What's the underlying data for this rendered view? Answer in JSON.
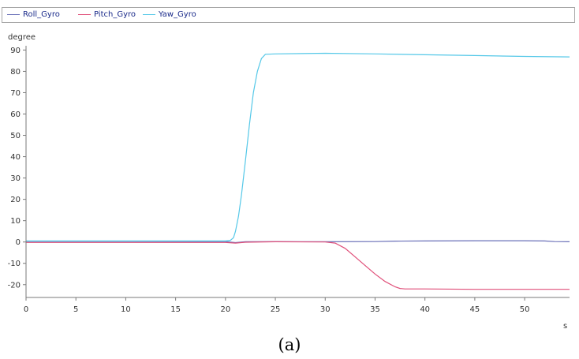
{
  "chart_data": {
    "type": "line",
    "title": "",
    "ylabel": "degree",
    "xlabel": "s",
    "caption": "(a)",
    "xlim": [
      0,
      54.5
    ],
    "ylim": [
      -26,
      92
    ],
    "xticks": [
      0,
      5,
      10,
      15,
      20,
      25,
      30,
      35,
      40,
      45,
      50
    ],
    "yticks": [
      -20,
      -10,
      0,
      10,
      20,
      30,
      40,
      50,
      60,
      70,
      80,
      90
    ],
    "legend_position": "top",
    "series": [
      {
        "name": "Roll_Gyro",
        "color": "#6a70b8",
        "x": [
          0,
          10,
          20,
          21,
          22,
          25,
          30,
          35,
          37,
          40,
          45,
          50,
          52,
          53,
          54.5
        ],
        "y": [
          0.3,
          0.3,
          0.2,
          -0.3,
          0.1,
          0.2,
          0.1,
          0.2,
          0.4,
          0.5,
          0.6,
          0.6,
          0.5,
          0.2,
          0.1
        ]
      },
      {
        "name": "Pitch_Gyro",
        "color": "#e0507a",
        "x": [
          0,
          10,
          20,
          21,
          22,
          25,
          30,
          31,
          32,
          33,
          34,
          35,
          36,
          37,
          37.5,
          38,
          40,
          45,
          50,
          54.5
        ],
        "y": [
          -0.2,
          -0.2,
          -0.2,
          -0.5,
          -0.1,
          0.1,
          0.0,
          -0.5,
          -3,
          -7,
          -11,
          -15,
          -18.5,
          -21,
          -21.8,
          -22.0,
          -22.0,
          -22.2,
          -22.2,
          -22.2
        ]
      },
      {
        "name": "Yaw_Gyro",
        "color": "#55c8e8",
        "x": [
          0,
          10,
          20,
          20.5,
          20.8,
          21.0,
          21.3,
          21.6,
          22.0,
          22.4,
          22.8,
          23.2,
          23.6,
          24.0,
          25,
          30,
          35,
          40,
          45,
          50,
          54.5
        ],
        "y": [
          0.5,
          0.5,
          0.5,
          0.8,
          2,
          5,
          12,
          22,
          38,
          55,
          70,
          80,
          86,
          88,
          88.2,
          88.5,
          88.2,
          87.8,
          87.4,
          87.0,
          86.8
        ]
      }
    ]
  }
}
